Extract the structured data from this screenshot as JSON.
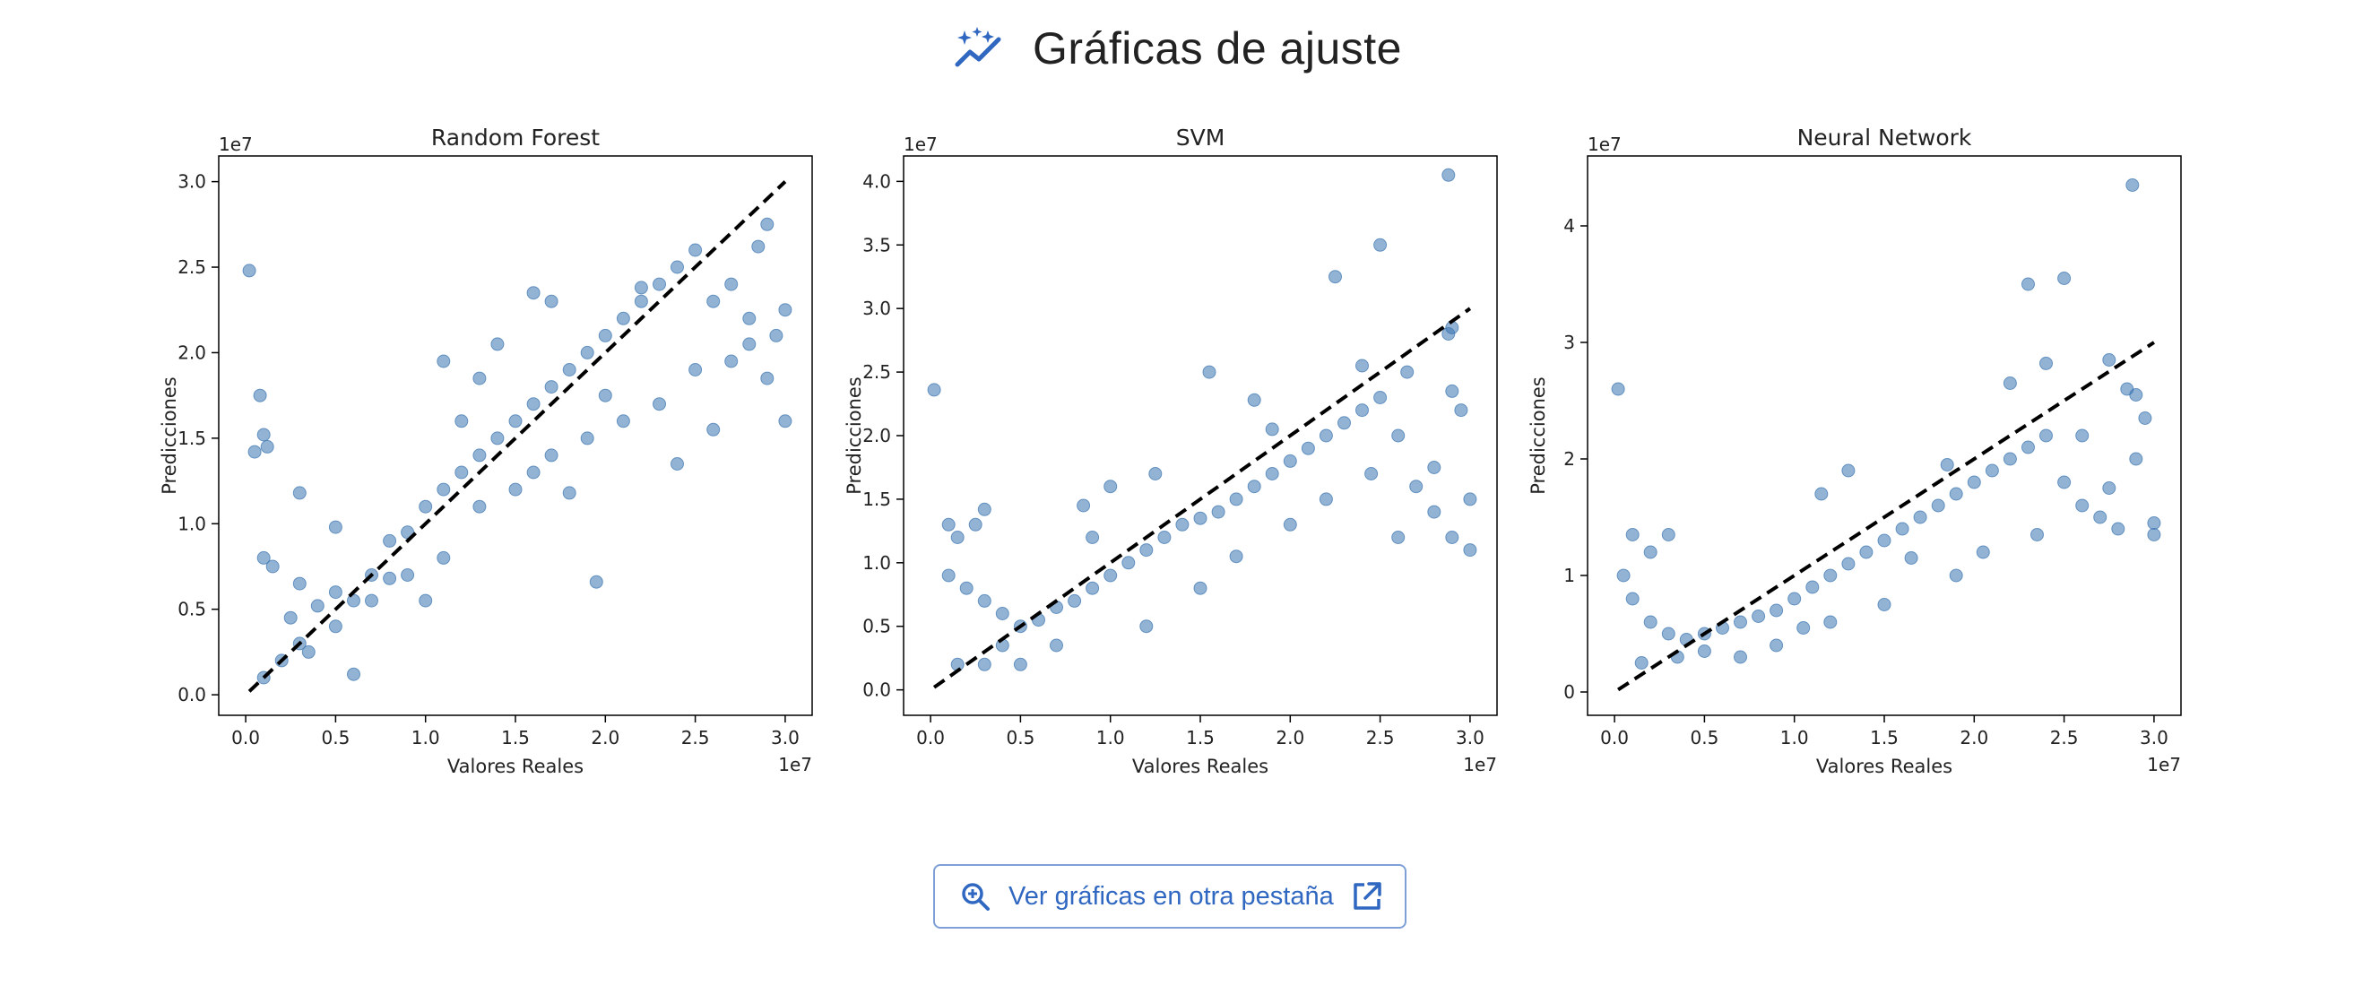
{
  "header": {
    "title": "Gráficas de ajuste",
    "icon": "sparkle-trend-icon"
  },
  "button": {
    "label": "Ver gráficas en otra pestaña",
    "left_icon": "zoom-in-icon",
    "right_icon": "external-link-icon"
  },
  "colors": {
    "accent": "#2f67c1",
    "points": "#3a75b0",
    "reference_line": "#000000"
  },
  "chart_data": [
    {
      "type": "scatter",
      "title": "Random Forest",
      "xlabel": "Valores Reales",
      "ylabel": "Predicciones",
      "x_offset_label": "1e7",
      "y_offset_label": "1e7",
      "xlim": [
        -0.15,
        3.15
      ],
      "ylim": [
        -0.12,
        3.15
      ],
      "xticks": [
        0.0,
        0.5,
        1.0,
        1.5,
        2.0,
        2.5,
        3.0
      ],
      "yticks": [
        0.0,
        0.5,
        1.0,
        1.5,
        2.0,
        2.5,
        3.0
      ],
      "xtick_labels": [
        "0.0",
        "0.5",
        "1.0",
        "1.5",
        "2.0",
        "2.5",
        "3.0"
      ],
      "ytick_labels": [
        "0.0",
        "0.5",
        "1.0",
        "1.5",
        "2.0",
        "2.5",
        "3.0"
      ],
      "reference_line": [
        [
          0.02,
          0.02
        ],
        [
          3.0,
          3.0
        ]
      ],
      "points": [
        [
          0.02,
          2.48
        ],
        [
          0.08,
          1.75
        ],
        [
          0.05,
          1.42
        ],
        [
          0.1,
          1.52
        ],
        [
          0.12,
          1.45
        ],
        [
          0.3,
          1.18
        ],
        [
          0.5,
          0.98
        ],
        [
          0.1,
          0.8
        ],
        [
          0.15,
          0.75
        ],
        [
          0.3,
          0.65
        ],
        [
          0.5,
          0.6
        ],
        [
          0.6,
          0.55
        ],
        [
          0.7,
          0.7
        ],
        [
          0.8,
          0.9
        ],
        [
          0.9,
          0.95
        ],
        [
          1.0,
          1.1
        ],
        [
          1.1,
          1.2
        ],
        [
          1.2,
          1.3
        ],
        [
          1.3,
          1.4
        ],
        [
          1.4,
          1.5
        ],
        [
          1.5,
          1.6
        ],
        [
          1.6,
          1.7
        ],
        [
          1.7,
          1.8
        ],
        [
          1.8,
          1.9
        ],
        [
          1.9,
          2.0
        ],
        [
          2.0,
          2.1
        ],
        [
          2.1,
          2.2
        ],
        [
          2.2,
          2.3
        ],
        [
          2.3,
          2.4
        ],
        [
          2.4,
          2.5
        ],
        [
          2.5,
          2.6
        ],
        [
          2.6,
          2.3
        ],
        [
          2.7,
          2.4
        ],
        [
          2.8,
          2.2
        ],
        [
          2.85,
          2.62
        ],
        [
          2.9,
          2.75
        ],
        [
          2.9,
          1.85
        ],
        [
          3.0,
          1.6
        ],
        [
          2.95,
          2.1
        ],
        [
          3.0,
          2.25
        ],
        [
          2.7,
          1.95
        ],
        [
          2.5,
          1.9
        ],
        [
          2.3,
          1.7
        ],
        [
          2.1,
          1.6
        ],
        [
          1.9,
          1.5
        ],
        [
          1.7,
          1.4
        ],
        [
          1.5,
          1.2
        ],
        [
          1.3,
          1.1
        ],
        [
          1.1,
          0.8
        ],
        [
          0.9,
          0.7
        ],
        [
          0.7,
          0.55
        ],
        [
          0.5,
          0.4
        ],
        [
          0.3,
          0.3
        ],
        [
          0.2,
          0.2
        ],
        [
          0.1,
          0.1
        ],
        [
          1.95,
          0.66
        ],
        [
          0.6,
          0.12
        ],
        [
          1.0,
          0.55
        ],
        [
          1.8,
          1.18
        ],
        [
          1.2,
          1.6
        ],
        [
          1.3,
          1.85
        ],
        [
          1.1,
          1.95
        ],
        [
          1.4,
          2.05
        ],
        [
          1.6,
          2.35
        ],
        [
          2.2,
          2.38
        ],
        [
          1.7,
          2.3
        ],
        [
          2.6,
          1.55
        ],
        [
          2.4,
          1.35
        ],
        [
          0.4,
          0.52
        ],
        [
          0.8,
          0.68
        ],
        [
          1.6,
          1.3
        ],
        [
          2.0,
          1.75
        ],
        [
          2.8,
          2.05
        ],
        [
          0.25,
          0.45
        ],
        [
          0.35,
          0.25
        ]
      ]
    },
    {
      "type": "scatter",
      "title": "SVM",
      "xlabel": "Valores Reales",
      "ylabel": "Predicciones",
      "x_offset_label": "1e7",
      "y_offset_label": "1e7",
      "xlim": [
        -0.15,
        3.15
      ],
      "ylim": [
        -0.2,
        4.2
      ],
      "xticks": [
        0.0,
        0.5,
        1.0,
        1.5,
        2.0,
        2.5,
        3.0
      ],
      "yticks": [
        0.0,
        0.5,
        1.0,
        1.5,
        2.0,
        2.5,
        3.0,
        3.5,
        4.0
      ],
      "xtick_labels": [
        "0.0",
        "0.5",
        "1.0",
        "1.5",
        "2.0",
        "2.5",
        "3.0"
      ],
      "ytick_labels": [
        "0.0",
        "0.5",
        "1.0",
        "1.5",
        "2.0",
        "2.5",
        "3.0",
        "3.5",
        "4.0"
      ],
      "reference_line": [
        [
          0.02,
          0.02
        ],
        [
          3.0,
          3.0
        ]
      ],
      "points": [
        [
          0.02,
          2.36
        ],
        [
          0.1,
          1.3
        ],
        [
          0.15,
          1.2
        ],
        [
          0.25,
          1.3
        ],
        [
          0.3,
          1.42
        ],
        [
          0.1,
          0.9
        ],
        [
          0.2,
          0.8
        ],
        [
          0.3,
          0.7
        ],
        [
          0.4,
          0.6
        ],
        [
          0.5,
          0.5
        ],
        [
          0.6,
          0.55
        ],
        [
          0.7,
          0.65
        ],
        [
          0.8,
          0.7
        ],
        [
          0.9,
          0.8
        ],
        [
          1.0,
          0.9
        ],
        [
          1.1,
          1.0
        ],
        [
          1.2,
          1.1
        ],
        [
          1.3,
          1.2
        ],
        [
          1.4,
          1.3
        ],
        [
          1.5,
          1.35
        ],
        [
          1.6,
          1.4
        ],
        [
          1.7,
          1.5
        ],
        [
          1.8,
          1.6
        ],
        [
          1.9,
          1.7
        ],
        [
          2.0,
          1.8
        ],
        [
          2.1,
          1.9
        ],
        [
          2.2,
          2.0
        ],
        [
          2.3,
          2.1
        ],
        [
          2.4,
          2.2
        ],
        [
          2.5,
          2.3
        ],
        [
          2.6,
          2.0
        ],
        [
          2.7,
          1.6
        ],
        [
          2.8,
          1.4
        ],
        [
          2.9,
          1.2
        ],
        [
          3.0,
          1.1
        ],
        [
          2.9,
          2.85
        ],
        [
          2.88,
          2.8
        ],
        [
          2.9,
          2.35
        ],
        [
          2.95,
          2.2
        ],
        [
          2.25,
          3.25
        ],
        [
          2.5,
          3.5
        ],
        [
          2.88,
          4.05
        ],
        [
          1.55,
          2.5
        ],
        [
          2.4,
          2.55
        ],
        [
          1.25,
          1.7
        ],
        [
          1.0,
          1.6
        ],
        [
          0.85,
          1.45
        ],
        [
          0.9,
          1.2
        ],
        [
          1.8,
          2.28
        ],
        [
          1.9,
          2.05
        ],
        [
          2.2,
          1.5
        ],
        [
          2.6,
          1.2
        ],
        [
          2.8,
          1.75
        ],
        [
          1.5,
          0.8
        ],
        [
          1.2,
          0.5
        ],
        [
          0.3,
          0.2
        ],
        [
          0.5,
          0.2
        ],
        [
          0.7,
          0.35
        ],
        [
          0.15,
          0.2
        ],
        [
          0.4,
          0.35
        ],
        [
          2.0,
          1.3
        ],
        [
          1.7,
          1.05
        ],
        [
          2.45,
          1.7
        ],
        [
          2.65,
          2.5
        ],
        [
          3.0,
          1.5
        ]
      ]
    },
    {
      "type": "scatter",
      "title": "Neural Network",
      "xlabel": "Valores Reales",
      "ylabel": "Predicciones",
      "x_offset_label": "1e7",
      "y_offset_label": "1e7",
      "xlim": [
        -0.15,
        3.15
      ],
      "ylim": [
        -0.2,
        4.6
      ],
      "xticks": [
        0.0,
        0.5,
        1.0,
        1.5,
        2.0,
        2.5,
        3.0
      ],
      "yticks": [
        0,
        1,
        2,
        3,
        4
      ],
      "xtick_labels": [
        "0.0",
        "0.5",
        "1.0",
        "1.5",
        "2.0",
        "2.5",
        "3.0"
      ],
      "ytick_labels": [
        "0",
        "1",
        "2",
        "3",
        "4"
      ],
      "reference_line": [
        [
          0.02,
          0.02
        ],
        [
          3.0,
          3.0
        ]
      ],
      "points": [
        [
          0.02,
          2.6
        ],
        [
          0.1,
          1.35
        ],
        [
          0.2,
          1.2
        ],
        [
          0.3,
          1.35
        ],
        [
          0.05,
          1.0
        ],
        [
          0.1,
          0.8
        ],
        [
          0.2,
          0.6
        ],
        [
          0.3,
          0.5
        ],
        [
          0.4,
          0.45
        ],
        [
          0.5,
          0.5
        ],
        [
          0.6,
          0.55
        ],
        [
          0.7,
          0.6
        ],
        [
          0.8,
          0.65
        ],
        [
          0.9,
          0.7
        ],
        [
          1.0,
          0.8
        ],
        [
          1.1,
          0.9
        ],
        [
          1.2,
          1.0
        ],
        [
          1.3,
          1.1
        ],
        [
          1.4,
          1.2
        ],
        [
          1.5,
          1.3
        ],
        [
          1.6,
          1.4
        ],
        [
          1.7,
          1.5
        ],
        [
          1.8,
          1.6
        ],
        [
          1.9,
          1.7
        ],
        [
          2.0,
          1.8
        ],
        [
          2.1,
          1.9
        ],
        [
          2.2,
          2.0
        ],
        [
          2.3,
          2.1
        ],
        [
          2.4,
          2.2
        ],
        [
          2.5,
          1.8
        ],
        [
          2.6,
          1.6
        ],
        [
          2.7,
          1.5
        ],
        [
          2.8,
          1.4
        ],
        [
          2.85,
          2.6
        ],
        [
          2.9,
          2.55
        ],
        [
          2.9,
          2.0
        ],
        [
          3.0,
          1.45
        ],
        [
          3.0,
          1.35
        ],
        [
          2.75,
          2.85
        ],
        [
          2.95,
          2.35
        ],
        [
          2.3,
          3.5
        ],
        [
          2.5,
          3.55
        ],
        [
          2.88,
          4.35
        ],
        [
          2.4,
          2.82
        ],
        [
          2.2,
          2.65
        ],
        [
          1.3,
          1.9
        ],
        [
          1.15,
          1.7
        ],
        [
          1.85,
          1.95
        ],
        [
          2.05,
          1.2
        ],
        [
          1.9,
          1.0
        ],
        [
          1.5,
          0.75
        ],
        [
          1.2,
          0.6
        ],
        [
          0.35,
          0.3
        ],
        [
          0.5,
          0.35
        ],
        [
          0.7,
          0.3
        ],
        [
          0.15,
          0.25
        ],
        [
          2.6,
          2.2
        ],
        [
          2.75,
          1.75
        ],
        [
          1.65,
          1.15
        ],
        [
          2.35,
          1.35
        ],
        [
          0.9,
          0.4
        ],
        [
          1.05,
          0.55
        ]
      ]
    }
  ]
}
